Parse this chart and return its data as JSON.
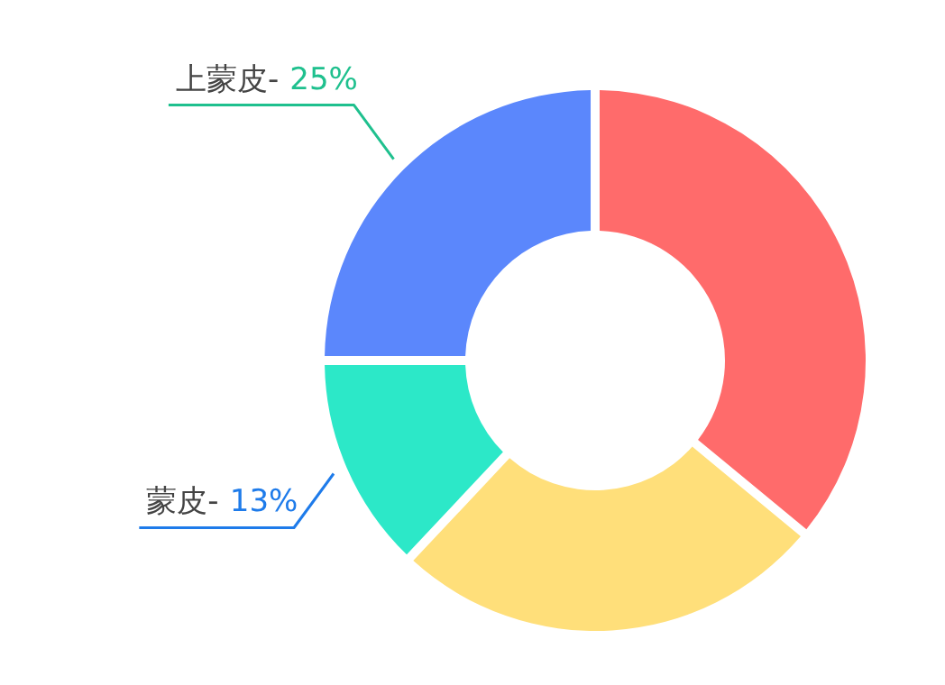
{
  "chart_data": {
    "type": "donut",
    "categories": [
      null,
      null,
      "蒙皮-",
      "上蒙皮-"
    ],
    "values": [
      36,
      26,
      13,
      25
    ],
    "colors": [
      "#ff6b6b",
      "#ffdf7a",
      "#2ce8c8",
      "#5b87fc"
    ],
    "value_labels": [
      null,
      null,
      "13%",
      "25%"
    ]
  }
}
